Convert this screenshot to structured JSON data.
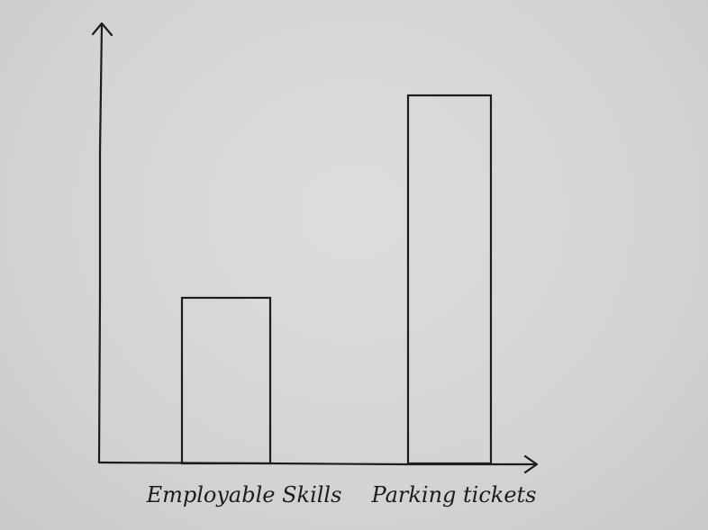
{
  "chart_data": {
    "type": "bar",
    "title": "",
    "xlabel": "",
    "ylabel": "",
    "categories": [
      "Employable Skills",
      "Parking tickets"
    ],
    "values": [
      0.45,
      1.0
    ],
    "ylim": [
      0,
      1.1
    ],
    "grid": false,
    "axis_ticks": false
  },
  "colors": {
    "ink": "#1c1c1c",
    "paper": "#d6d6d4"
  }
}
